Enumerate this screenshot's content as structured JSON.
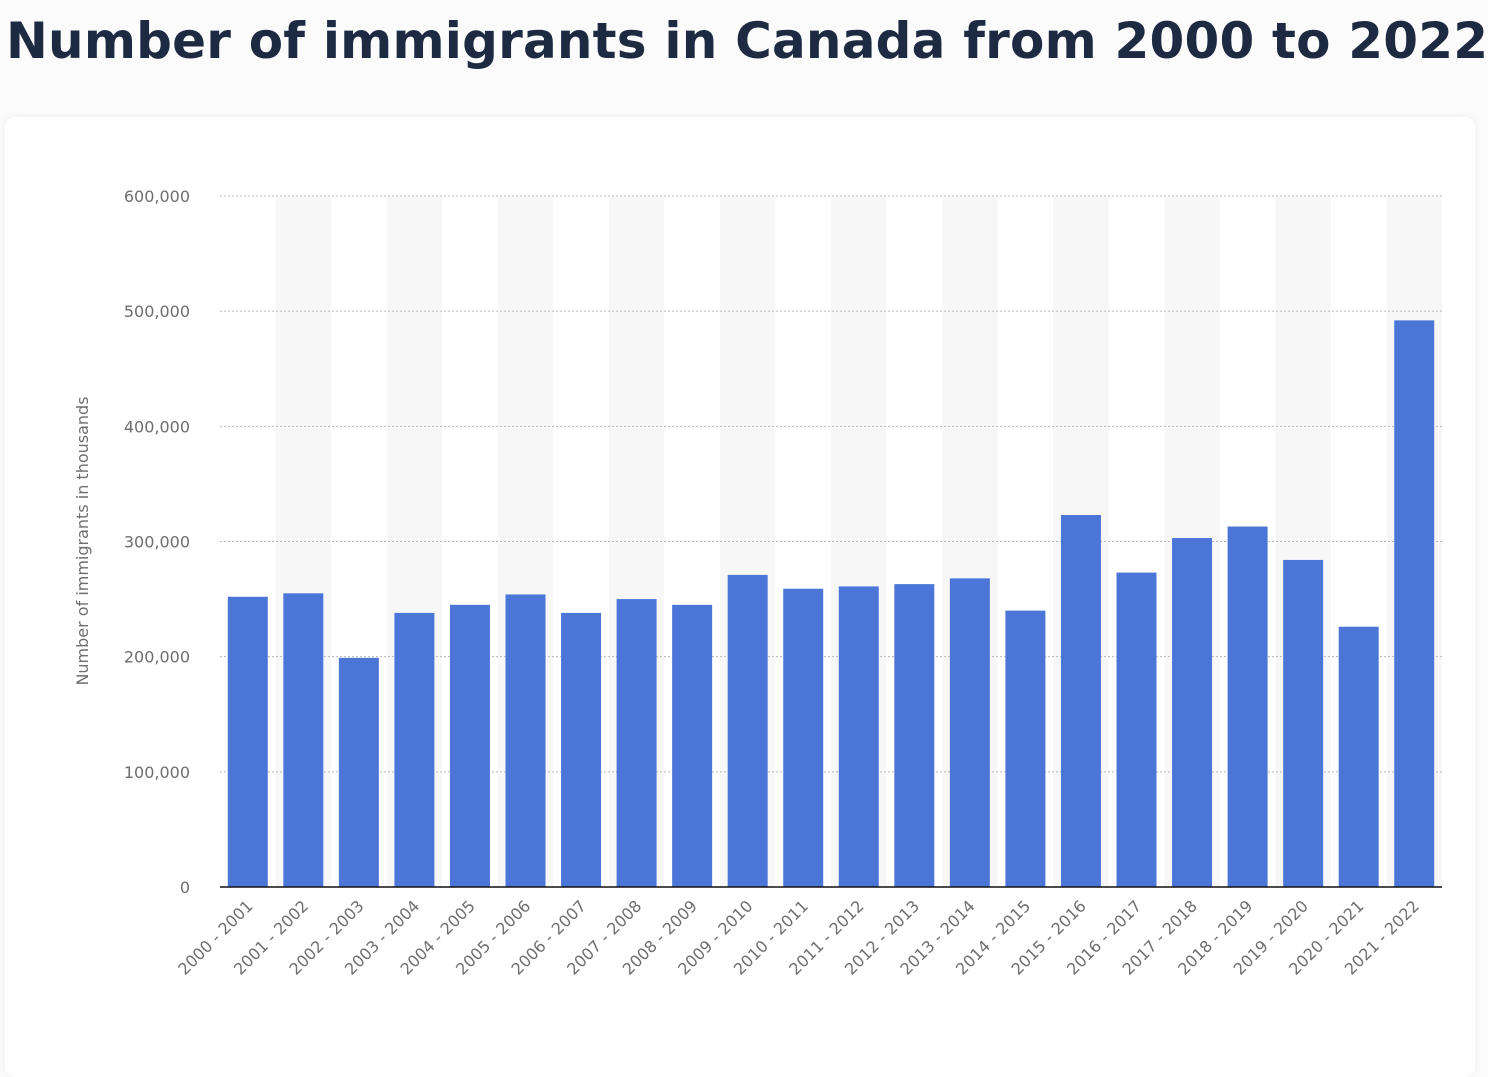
{
  "title": "Number of immigrants in Canada from 2000 to 2022",
  "colors": {
    "bar": "#4b76d8",
    "band": "#f7f7f8",
    "grid": "#b8b8b8",
    "axis": "#111111",
    "text": "#6e6e6e"
  },
  "chart_data": {
    "type": "bar",
    "title": "Number of immigrants in Canada from 2000 to 2022",
    "ylabel": "Number of immigrants in thousands",
    "xlabel": "",
    "ylim": [
      0,
      600000
    ],
    "yticks": [
      0,
      100000,
      200000,
      300000,
      400000,
      500000,
      600000
    ],
    "ytick_labels": [
      "0",
      "100,000",
      "200,000",
      "300,000",
      "400,000",
      "500,000",
      "600,000"
    ],
    "grid": true,
    "legend": "none",
    "categories": [
      "2000 - 2001",
      "2001 - 2002",
      "2002 - 2003",
      "2003 - 2004",
      "2004 - 2005",
      "2005 - 2006",
      "2006 - 2007",
      "2007 - 2008",
      "2008 - 2009",
      "2009 - 2010",
      "2010 - 2011",
      "2011 - 2012",
      "2012 - 2013",
      "2013 - 2014",
      "2014 - 2015",
      "2015 - 2016",
      "2016 - 2017",
      "2017 - 2018",
      "2018 - 2019",
      "2019 - 2020",
      "2020 - 2021",
      "2021 - 2022"
    ],
    "values": [
      252000,
      255000,
      199000,
      238000,
      245000,
      254000,
      238000,
      250000,
      245000,
      271000,
      259000,
      261000,
      263000,
      268000,
      240000,
      323000,
      273000,
      303000,
      313000,
      284000,
      226000,
      492000
    ]
  }
}
